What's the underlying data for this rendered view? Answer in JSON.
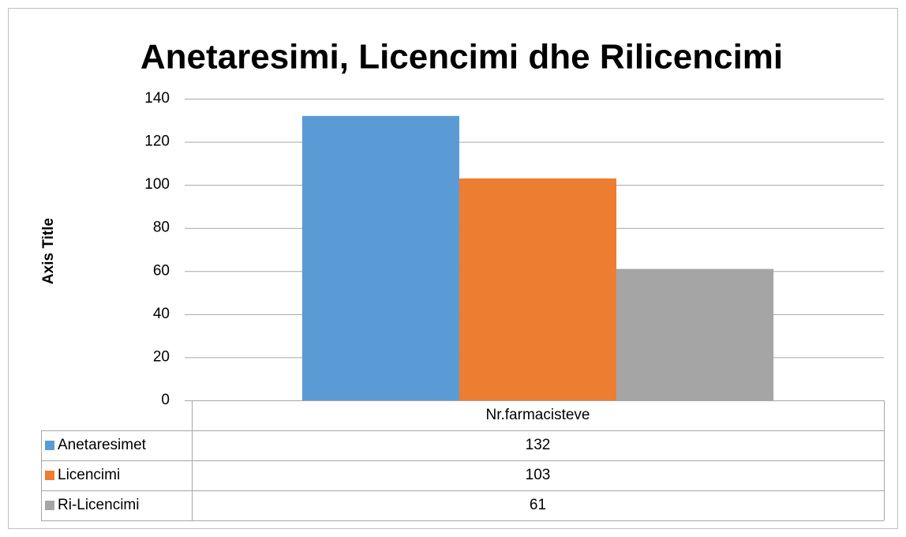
{
  "chart_data": {
    "type": "bar",
    "title": "Anetaresimi, Licencimi dhe Rilicencimi",
    "y_axis_label": "Axis Title",
    "categories": [
      "Nr.farmacisteve"
    ],
    "series": [
      {
        "name": "Anetaresimet",
        "color": "#5b9bd5",
        "values": [
          132
        ]
      },
      {
        "name": "Licencimi",
        "color": "#ed7d31",
        "values": [
          103
        ]
      },
      {
        "name": "Ri-Licencimi",
        "color": "#a5a5a5",
        "values": [
          61
        ]
      }
    ],
    "ylim": [
      0,
      140
    ],
    "yticks": [
      0,
      20,
      40,
      60,
      80,
      100,
      120,
      140
    ],
    "grid": true,
    "data_table": true
  }
}
